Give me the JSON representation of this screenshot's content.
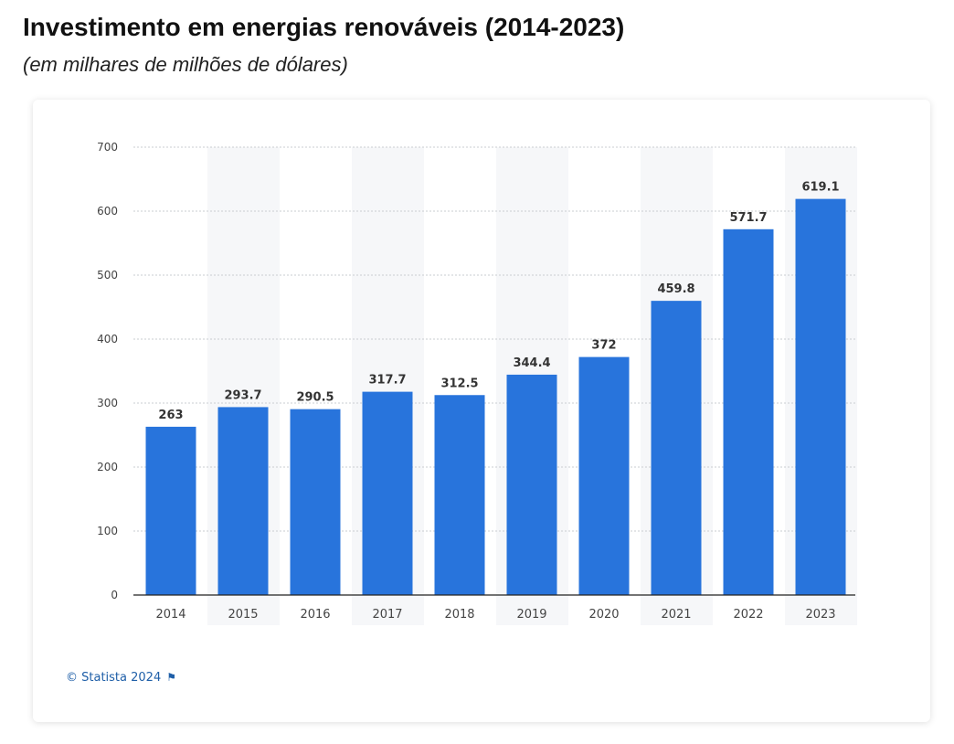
{
  "header": {
    "title": "Investimento em energias renováveis (2014-2023)",
    "subtitle": "(em milhares de milhões de dólares)"
  },
  "footer": {
    "credit": "© Statista 2024",
    "flag_icon": "flag-icon"
  },
  "colors": {
    "bar": "#2874dc",
    "band": "#f6f7f9",
    "grid": "#c9ccd1",
    "axis": "#222222",
    "tick_text": "#444444",
    "label_text": "#333333",
    "credit": "#1f5fa8"
  },
  "chart_data": {
    "type": "bar",
    "categories": [
      "2014",
      "2015",
      "2016",
      "2017",
      "2018",
      "2019",
      "2020",
      "2021",
      "2022",
      "2023"
    ],
    "values": [
      263,
      293.7,
      290.5,
      317.7,
      312.5,
      344.4,
      372,
      459.8,
      571.7,
      619.1
    ],
    "data_labels": [
      "263",
      "293.7",
      "290.5",
      "317.7",
      "312.5",
      "344.4",
      "372",
      "459.8",
      "571.7",
      "619.1"
    ],
    "title": "",
    "xlabel": "",
    "ylabel": "",
    "ylim": [
      0,
      700
    ],
    "yticks": [
      0,
      100,
      200,
      300,
      400,
      500,
      600,
      700
    ],
    "grid": true,
    "legend": "none"
  }
}
